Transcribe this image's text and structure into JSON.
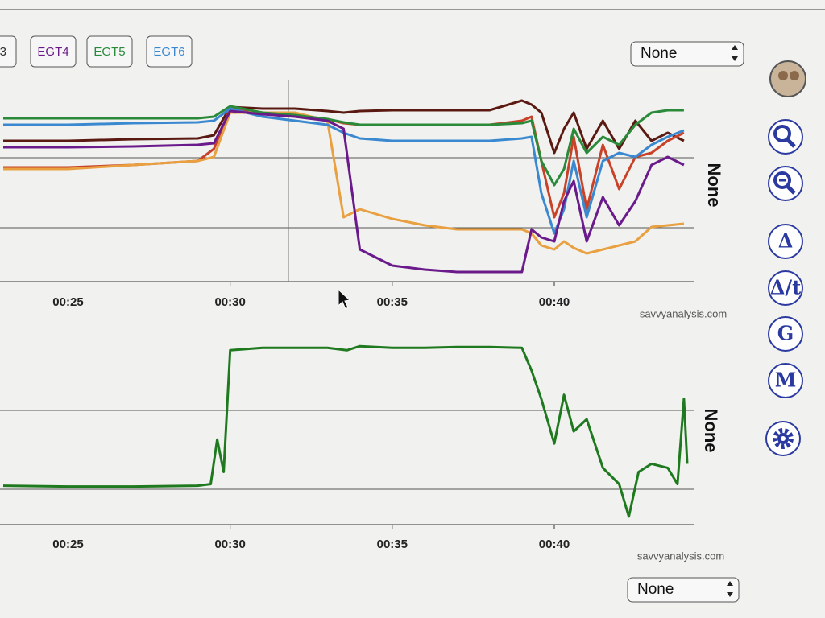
{
  "toolbar": {
    "partial_button": "3",
    "select": "None"
  },
  "side_tools": [
    "Δ",
    "Δ/t",
    "G",
    "M"
  ],
  "chart_data": [
    {
      "type": "line",
      "y_label": "None",
      "watermark": "savvyanalysis.com",
      "x": [
        23,
        25,
        27,
        29,
        29.5,
        30,
        31,
        32,
        33,
        33.5,
        34,
        35,
        36,
        37,
        38,
        39,
        39.3,
        39.6,
        40,
        40.3,
        40.6,
        41,
        41.5,
        42,
        42.5,
        43,
        43.5,
        44
      ],
      "xlim": [
        22.9,
        44.3
      ],
      "xticks": [
        {
          "value": 25,
          "label": "00:25"
        },
        {
          "value": 30,
          "label": "00:30"
        },
        {
          "value": 35,
          "label": "00:35"
        },
        {
          "value": 40,
          "label": "00:40"
        }
      ],
      "ylim": [
        0,
        250
      ],
      "series": [
        {
          "color": "#5a1a12",
          "values": [
            175,
            175,
            177,
            178,
            182,
            217,
            215,
            215,
            212,
            210,
            212,
            213,
            213,
            213,
            213,
            225,
            220,
            210,
            160,
            190,
            210,
            165,
            200,
            165,
            200,
            175,
            185,
            175
          ]
        },
        {
          "color": "#c8422a",
          "values": [
            142,
            142,
            145,
            150,
            165,
            215,
            210,
            207,
            202,
            197,
            195,
            195,
            195,
            195,
            195,
            200,
            205,
            150,
            80,
            110,
            180,
            90,
            170,
            115,
            155,
            160,
            175,
            185
          ]
        },
        {
          "color": "#e8a040",
          "values": [
            140,
            140,
            145,
            150,
            155,
            210,
            210,
            210,
            200,
            80,
            90,
            78,
            70,
            65,
            65,
            65,
            60,
            45,
            40,
            50,
            42,
            35,
            40,
            45,
            50,
            68,
            70,
            72
          ]
        },
        {
          "name": "EGT5",
          "color": "#2a8a3a",
          "values": [
            203,
            203,
            203,
            203,
            205,
            218,
            210,
            207,
            202,
            198,
            195,
            195,
            195,
            195,
            195,
            197,
            200,
            150,
            120,
            140,
            190,
            160,
            180,
            170,
            195,
            210,
            213,
            213
          ]
        },
        {
          "name": "EGT6",
          "color": "#3a88d0",
          "values": [
            195,
            195,
            197,
            198,
            200,
            215,
            205,
            200,
            195,
            185,
            178,
            175,
            175,
            175,
            175,
            178,
            180,
            110,
            60,
            90,
            150,
            80,
            150,
            160,
            155,
            170,
            180,
            188
          ]
        },
        {
          "name": "EGT4",
          "color": "#6a1a8a",
          "values": [
            167,
            167,
            168,
            170,
            172,
            212,
            208,
            205,
            200,
            190,
            40,
            20,
            15,
            12,
            12,
            12,
            65,
            55,
            50,
            100,
            125,
            50,
            105,
            70,
            100,
            145,
            155,
            145
          ]
        }
      ]
    },
    {
      "type": "line",
      "y_label": "None",
      "watermark": "savvyanalysis.com",
      "x": [
        23,
        25,
        27,
        29,
        29.4,
        29.6,
        29.8,
        30,
        31,
        32,
        33,
        33.6,
        34,
        35,
        36,
        37,
        38,
        39,
        39.3,
        39.6,
        40,
        40.3,
        40.6,
        41,
        41.5,
        42,
        42.3,
        42.6,
        43,
        43.5,
        43.8,
        44,
        44.1
      ],
      "xlim": [
        22.9,
        44.3
      ],
      "xticks": [
        {
          "value": 25,
          "label": "00:25"
        },
        {
          "value": 30,
          "label": "00:30"
        },
        {
          "value": 35,
          "label": "00:35"
        },
        {
          "value": 40,
          "label": "00:40"
        }
      ],
      "ylim": [
        0,
        250
      ],
      "series": [
        {
          "color": "#1f7a1f",
          "values": [
            48,
            47,
            47,
            48,
            50,
            105,
            65,
            215,
            218,
            218,
            218,
            215,
            220,
            218,
            218,
            219,
            219,
            218,
            190,
            155,
            100,
            160,
            115,
            130,
            70,
            50,
            10,
            65,
            75,
            70,
            50,
            155,
            75
          ]
        }
      ]
    }
  ],
  "bottom_select": "None"
}
